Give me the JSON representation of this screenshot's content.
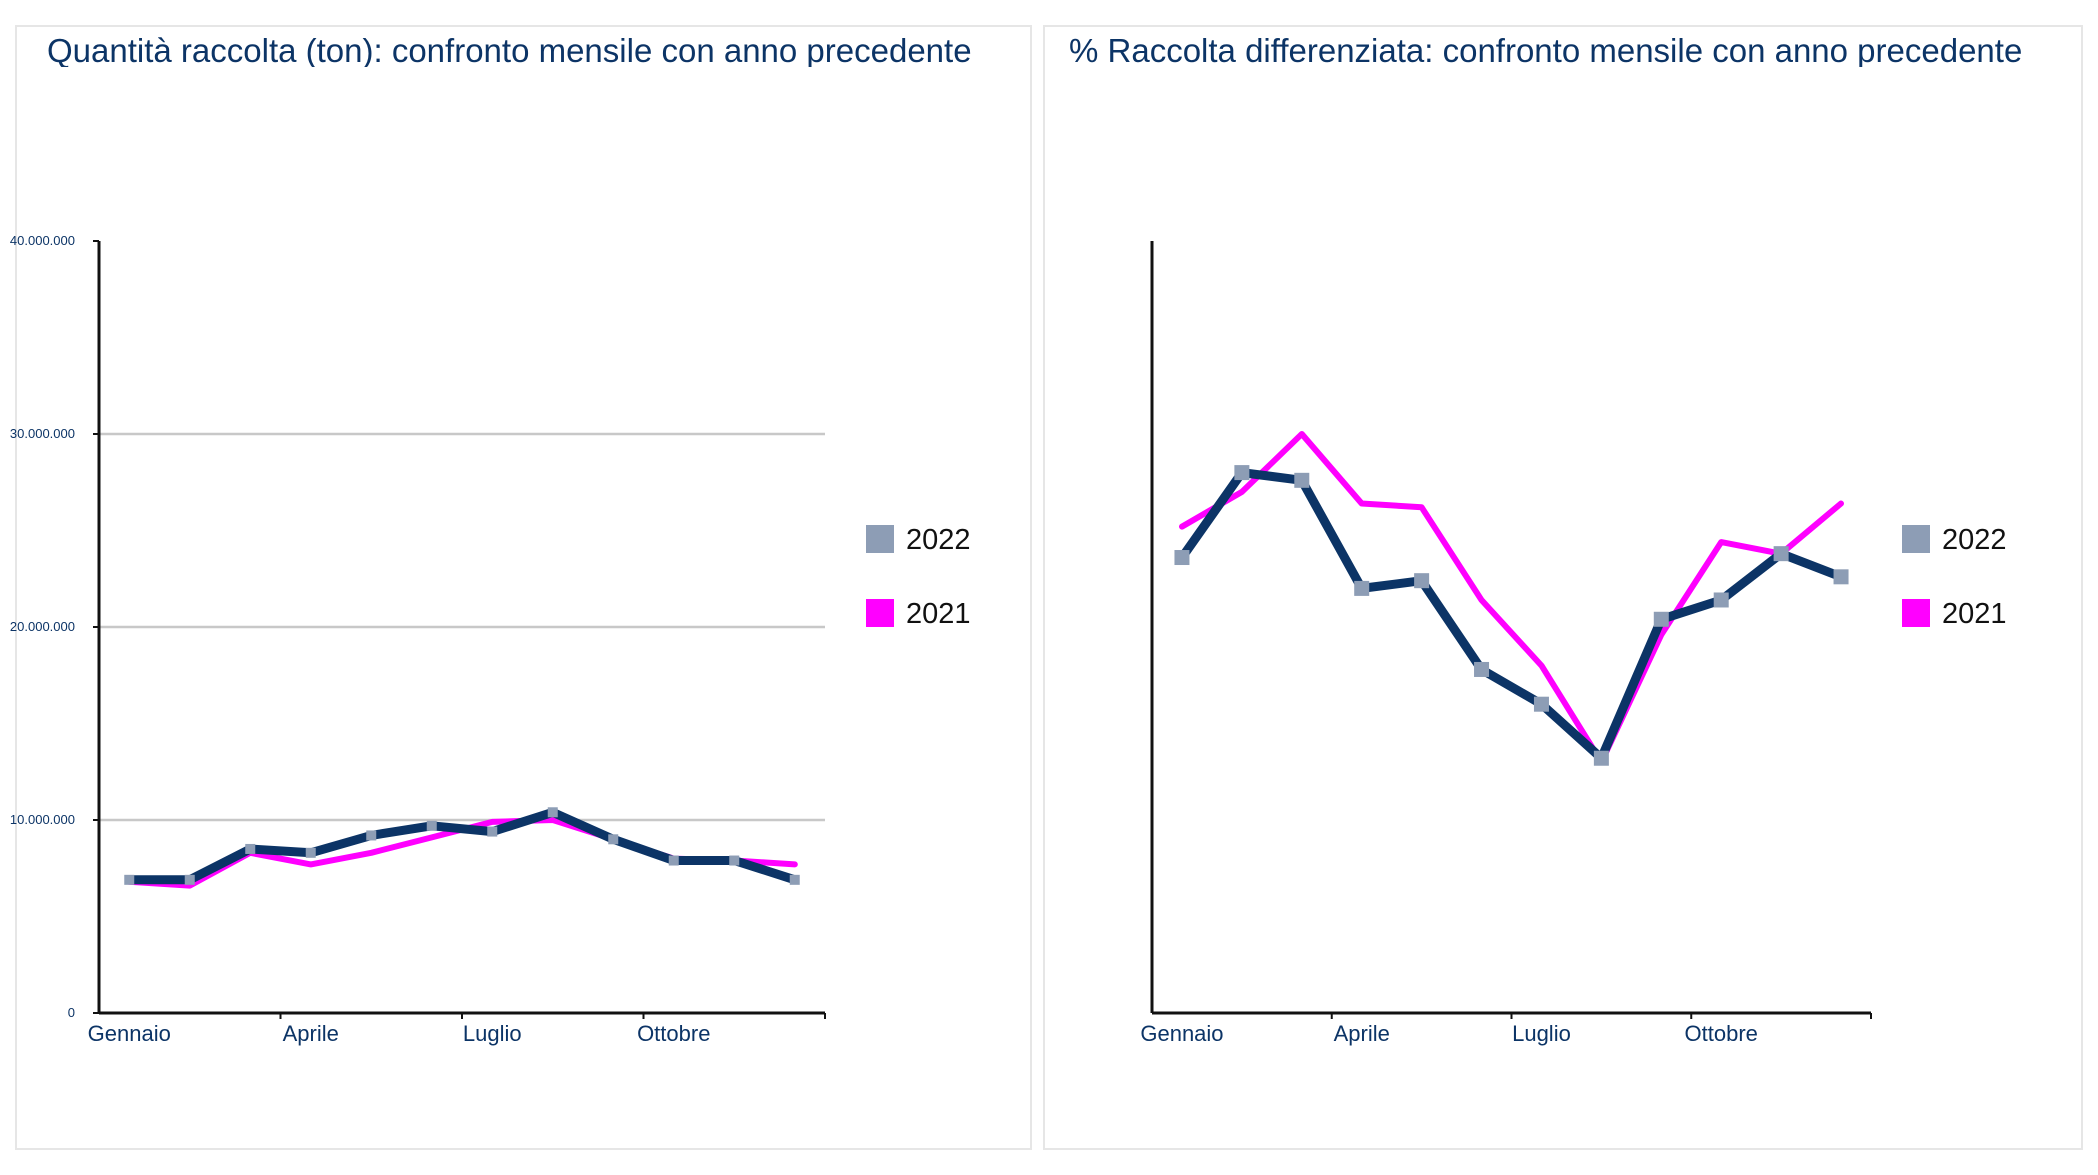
{
  "colors": {
    "series_2022_line": "#0c3466",
    "series_2022_marker": "#8d9db5",
    "series_2021": "#ff00ff",
    "title": "#0c3466",
    "grid": "#c8c8c8",
    "axis": "#111111"
  },
  "chart_data": [
    {
      "type": "line",
      "title": "Quantità raccolta (ton): confronto mensile con anno precedente",
      "x_tick_labels": [
        "Gennaio",
        "Aprile",
        "Luglio",
        "Ottobre"
      ],
      "x_tick_label_positions": [
        1,
        4,
        7,
        10
      ],
      "y_tick_labels": [
        "0",
        "10.000.000",
        "20.000.000",
        "30.000.000",
        "40.000.000"
      ],
      "ylim": [
        0,
        40000000
      ],
      "grid": true,
      "legend_position": "right",
      "series": [
        {
          "name": "2022",
          "x": [
            1,
            2,
            3,
            4,
            5,
            6,
            7,
            8,
            9,
            10,
            11,
            12
          ],
          "values": [
            6900000,
            6900000,
            8500000,
            8300000,
            9200000,
            9700000,
            9400000,
            10400000,
            9000000,
            7900000,
            7900000,
            6900000
          ]
        },
        {
          "name": "2021",
          "x": [
            1,
            2,
            3,
            4,
            5,
            6,
            7,
            8,
            9,
            10,
            11,
            12
          ],
          "values": [
            6800000,
            6600000,
            8300000,
            7700000,
            8300000,
            9100000,
            9900000,
            10000000,
            9000000,
            8000000,
            7900000,
            7700000
          ]
        }
      ]
    },
    {
      "type": "line",
      "title": "% Raccolta differenziata: confronto mensile con anno precedente",
      "x_tick_labels": [
        "Gennaio",
        "Aprile",
        "Luglio",
        "Ottobre"
      ],
      "x_tick_label_positions": [
        1,
        4,
        7,
        10
      ],
      "y_tick_labels": [],
      "ylim": [
        0,
        100
      ],
      "grid": false,
      "legend_position": "right",
      "series": [
        {
          "name": "2022",
          "x": [
            1,
            2,
            3,
            4,
            5,
            6,
            7,
            8,
            9,
            10,
            11,
            12
          ],
          "values": [
            59,
            70,
            69,
            55,
            56,
            44.5,
            40,
            33,
            51,
            53.5,
            59.5,
            56.5
          ]
        },
        {
          "name": "2021",
          "x": [
            1,
            2,
            3,
            4,
            5,
            6,
            7,
            8,
            9,
            10,
            11,
            12
          ],
          "values": [
            63,
            67.5,
            75,
            66,
            65.5,
            53.5,
            45,
            32.5,
            49,
            61,
            59.5,
            66
          ]
        }
      ]
    }
  ]
}
